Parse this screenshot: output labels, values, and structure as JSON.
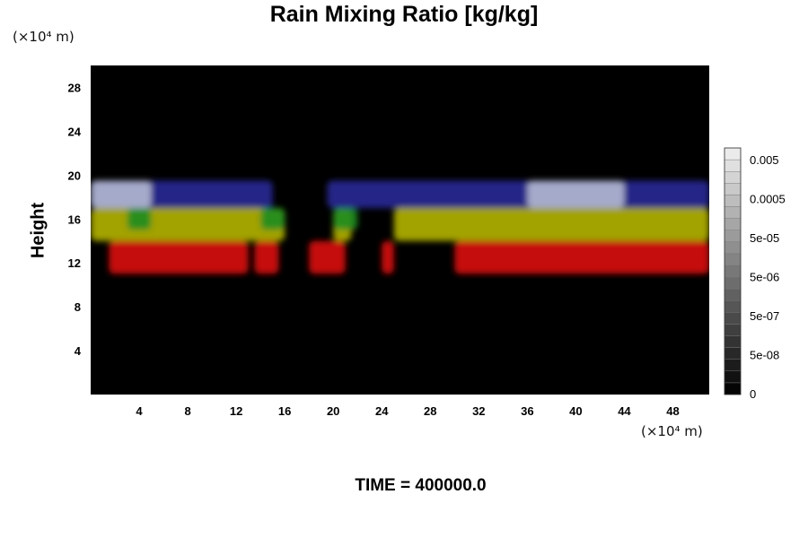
{
  "chart_data": {
    "type": "heatmap",
    "title": "Rain Mixing Ratio [kg/kg]",
    "xlabel": "",
    "ylabel": "Height",
    "x_unit": "(×10⁴ m)",
    "y_unit": "(×10⁴ m)",
    "xlim": [
      0,
      51
    ],
    "ylim": [
      0,
      30
    ],
    "x_ticks": [
      4,
      8,
      12,
      16,
      20,
      24,
      28,
      32,
      36,
      40,
      44,
      48
    ],
    "y_ticks": [
      4,
      8,
      12,
      16,
      20,
      24,
      28
    ],
    "background_color": "#000000",
    "bands": [
      {
        "color": "#dc0a0a",
        "y_range": [
          11,
          14
        ],
        "x_segments": [
          [
            1.5,
            13
          ],
          [
            13.5,
            15.5
          ],
          [
            18,
            21
          ],
          [
            24,
            25
          ],
          [
            30,
            51
          ]
        ]
      },
      {
        "color": "#b4b400",
        "y_range": [
          14,
          17
        ],
        "x_segments": [
          [
            0,
            16
          ],
          [
            20,
            21.5
          ],
          [
            25,
            51
          ]
        ]
      },
      {
        "color": "#1e8c1e",
        "y_range": [
          15,
          17
        ],
        "x_segments": [
          [
            3,
            5
          ],
          [
            14,
            16
          ],
          [
            20,
            22
          ]
        ]
      },
      {
        "color": "#282896",
        "y_range": [
          17,
          19.5
        ],
        "x_segments": [
          [
            0,
            15
          ],
          [
            19.5,
            51
          ]
        ]
      },
      {
        "color": "#b4b9d2",
        "y_range": [
          17,
          19.5
        ],
        "x_segments": [
          [
            0,
            5
          ],
          [
            36,
            44
          ]
        ]
      }
    ],
    "colorbar": {
      "labels": [
        "0.005",
        "0.0005",
        "5e-05",
        "5e-06",
        "5e-07",
        "5e-08",
        "0"
      ],
      "n_levels": 21
    }
  },
  "footer": {
    "time_label": "TIME = 400000.0"
  }
}
